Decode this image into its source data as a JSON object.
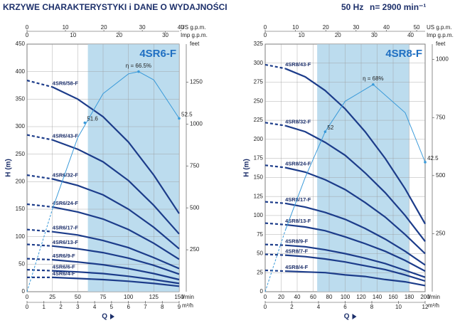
{
  "header": {
    "title": "KRZYWE CHARAKTERYSTYKI i DANE O WYDAJNOŚCI",
    "frequency": "50 Hz",
    "speed": "n= 2900 min⁻¹"
  },
  "chart_data": [
    {
      "type": "line",
      "title": "4SR6-F",
      "y_label": "H (m)",
      "x_label": "l/min",
      "q_label": "Q",
      "x": [
        0,
        25,
        50,
        75,
        100,
        125,
        150
      ],
      "xlim": [
        0,
        150
      ],
      "xticks": [
        0,
        25,
        50,
        75,
        100,
        125,
        150
      ],
      "ylim": [
        0,
        450
      ],
      "yticks": [
        0,
        50,
        100,
        150,
        200,
        250,
        300,
        350,
        400,
        450
      ],
      "y2_label": "feet",
      "y2lim": [
        0,
        1476.4
      ],
      "y2ticks": [
        250,
        500,
        750,
        1000,
        1250
      ],
      "top_axes": [
        {
          "label": "US g.p.m.",
          "lim": [
            0,
            39.6
          ],
          "ticks": [
            0,
            10,
            20,
            30,
            40
          ]
        },
        {
          "label": "Imp g.p.m.",
          "lim": [
            0,
            33
          ],
          "ticks": [
            0,
            10,
            20,
            30
          ]
        }
      ],
      "bottom_axis2": {
        "label": "m³/h",
        "lim": [
          0,
          9
        ],
        "ticks": [
          0,
          1,
          2,
          3,
          4,
          5,
          6,
          7,
          8,
          9
        ]
      },
      "highlight_range": [
        60,
        150
      ],
      "grid": true,
      "series": [
        {
          "name": "4SR6/58-F",
          "color": "#1c3c8a",
          "values": [
            384,
            372,
            350,
            318,
            272,
            212,
            142
          ]
        },
        {
          "name": "4SR6/43-F",
          "color": "#1c3c8a",
          "values": [
            285,
            276,
            259,
            236,
            202,
            157,
            105
          ]
        },
        {
          "name": "4SR6/32-F",
          "color": "#1c3c8a",
          "values": [
            212,
            205,
            193,
            176,
            150,
            117,
            78
          ]
        },
        {
          "name": "4SR6/24-F",
          "color": "#1c3c8a",
          "values": [
            159,
            154,
            145,
            132,
            113,
            88,
            59
          ]
        },
        {
          "name": "4SR6/17-F",
          "color": "#1c3c8a",
          "values": [
            113,
            109,
            103,
            93,
            80,
            62,
            42
          ]
        },
        {
          "name": "4SR6/13-F",
          "color": "#1c3c8a",
          "values": [
            86,
            83,
            78,
            71,
            61,
            48,
            32
          ]
        },
        {
          "name": "4SR6/9-F",
          "color": "#1c3c8a",
          "values": [
            60,
            58,
            54,
            49,
            42,
            33,
            22
          ]
        },
        {
          "name": "4SR6/6-F",
          "color": "#1c3c8a",
          "values": [
            40,
            38,
            36,
            33,
            28,
            22,
            15
          ]
        },
        {
          "name": "4SR6/4-F",
          "color": "#1c3c8a",
          "values": [
            26,
            26,
            24,
            22,
            19,
            15,
            10
          ]
        }
      ],
      "efficiency": {
        "color": "#3a9ad9",
        "x": [
          0,
          25,
          50,
          75,
          100,
          110,
          125,
          150
        ],
        "values": [
          0,
          150,
          280,
          360,
          396,
          400,
          385,
          315
        ]
      },
      "annotations": [
        {
          "text": "η = 66.5%",
          "x": 110,
          "y": 400
        },
        {
          "text": "51.6",
          "x": 57,
          "y": 307
        },
        {
          "text": "52.5",
          "x": 150,
          "y": 315
        }
      ]
    },
    {
      "type": "line",
      "title": "4SR8-F",
      "y_label": "H (m)",
      "x_label": "l/min",
      "q_label": "Q",
      "x": [
        0,
        25,
        50,
        75,
        100,
        125,
        150,
        175,
        200
      ],
      "xlim": [
        0,
        200
      ],
      "xticks": [
        0,
        20,
        40,
        60,
        80,
        100,
        120,
        140,
        160,
        180,
        200
      ],
      "ylim": [
        0,
        325
      ],
      "yticks": [
        0,
        25,
        50,
        75,
        100,
        125,
        150,
        175,
        200,
        225,
        250,
        275,
        300,
        325
      ],
      "y2_label": "feet",
      "y2lim": [
        0,
        1066.3
      ],
      "y2ticks": [
        250,
        500,
        750,
        1000
      ],
      "top_axes": [
        {
          "label": "US g.p.m.",
          "lim": [
            0,
            52.8
          ],
          "ticks": [
            0,
            10,
            20,
            30,
            40,
            50
          ]
        },
        {
          "label": "Imp g.p.m.",
          "lim": [
            0,
            44
          ],
          "ticks": [
            0,
            10,
            20,
            30,
            40
          ]
        }
      ],
      "bottom_axis2": {
        "label": "m³/h",
        "lim": [
          0,
          12
        ],
        "ticks": [
          0,
          2,
          4,
          6,
          8,
          10,
          12
        ]
      },
      "highlight_range": [
        65,
        180
      ],
      "grid": true,
      "series": [
        {
          "name": "4SR8/43-F",
          "color": "#1c3c8a",
          "values": [
            298,
            293,
            282,
            264,
            240,
            210,
            175,
            135,
            89
          ]
        },
        {
          "name": "4SR8/32-F",
          "color": "#1c3c8a",
          "values": [
            222,
            218,
            210,
            196,
            179,
            156,
            130,
            100,
            66
          ]
        },
        {
          "name": "4SR8/24-F",
          "color": "#1c3c8a",
          "values": [
            166,
            163,
            157,
            147,
            134,
            117,
            98,
            75,
            50
          ]
        },
        {
          "name": "4SR8/17-F",
          "color": "#1c3c8a",
          "values": [
            118,
            116,
            111,
            104,
            95,
            83,
            69,
            53,
            35
          ]
        },
        {
          "name": "4SR8/13-F",
          "color": "#1c3c8a",
          "values": [
            90,
            88,
            85,
            80,
            72,
            63,
            53,
            41,
            27
          ]
        },
        {
          "name": "4SR8/9-F",
          "color": "#1c3c8a",
          "values": [
            62,
            61,
            59,
            55,
            50,
            44,
            37,
            28,
            19
          ]
        },
        {
          "name": "4SR8/7-F",
          "color": "#1c3c8a",
          "values": [
            49,
            48,
            46,
            43,
            39,
            34,
            29,
            22,
            14
          ]
        },
        {
          "name": "4SR8/4-F",
          "color": "#1c3c8a",
          "values": [
            28,
            27,
            26,
            25,
            22,
            20,
            16,
            13,
            8
          ]
        }
      ],
      "efficiency": {
        "color": "#3a9ad9",
        "x": [
          0,
          25,
          50,
          75,
          100,
          135,
          175,
          200
        ],
        "values": [
          0,
          80,
          150,
          210,
          250,
          272,
          235,
          170
        ]
      },
      "annotations": [
        {
          "text": "η = 68%",
          "x": 135,
          "y": 272
        },
        {
          "text": "52",
          "x": 75,
          "y": 210
        },
        {
          "text": "42.5",
          "x": 200,
          "y": 170
        }
      ]
    }
  ]
}
